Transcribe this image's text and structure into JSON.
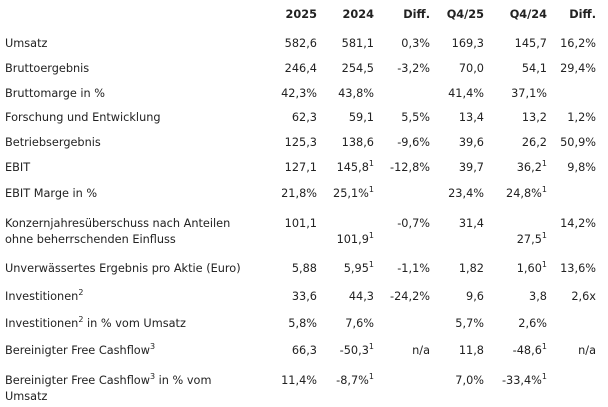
{
  "header": [
    "2025",
    "2024",
    "Diff.",
    "Q4/25",
    "Q4/24",
    "Diff."
  ],
  "rows": [
    {
      "label": [
        "Umsatz"
      ],
      "cells": [
        {
          "v": "582,6"
        },
        {
          "v": "581,1"
        },
        {
          "v": "0,3%"
        },
        {
          "v": "169,3"
        },
        {
          "v": "145,7"
        },
        {
          "v": "16,2%"
        }
      ]
    },
    {
      "label": [
        "Bruttoergebnis"
      ],
      "cells": [
        {
          "v": "246,4"
        },
        {
          "v": "254,5"
        },
        {
          "v": "-3,2%"
        },
        {
          "v": "70,0"
        },
        {
          "v": "54,1"
        },
        {
          "v": "29,4%"
        }
      ]
    },
    {
      "label": [
        "Bruttomarge in %"
      ],
      "cells": [
        {
          "v": "42,3%"
        },
        {
          "v": "43,8%"
        },
        {
          "v": ""
        },
        {
          "v": "41,4%"
        },
        {
          "v": "37,1%"
        },
        {
          "v": ""
        }
      ]
    },
    {
      "label": [
        "Forschung und Entwicklung"
      ],
      "cells": [
        {
          "v": "62,3"
        },
        {
          "v": "59,1"
        },
        {
          "v": "5,5%"
        },
        {
          "v": "13,4"
        },
        {
          "v": "13,2"
        },
        {
          "v": "1,2%"
        }
      ]
    },
    {
      "label": [
        "Betriebsergebnis"
      ],
      "cells": [
        {
          "v": "125,3"
        },
        {
          "v": "138,6"
        },
        {
          "v": "-9,6%"
        },
        {
          "v": "39,6"
        },
        {
          "v": "26,2"
        },
        {
          "v": "50,9%"
        }
      ]
    },
    {
      "label": [
        "EBIT"
      ],
      "cells": [
        {
          "v": "127,1"
        },
        {
          "v": "145,8",
          "sup": "1"
        },
        {
          "v": "-12,8%"
        },
        {
          "v": "39,7"
        },
        {
          "v": "36,2",
          "sup": "1"
        },
        {
          "v": "9,8%"
        }
      ]
    },
    {
      "label": [
        "EBIT Marge in %"
      ],
      "cells": [
        {
          "v": "21,8%"
        },
        {
          "v": "25,1%",
          "sup": "1"
        },
        {
          "v": ""
        },
        {
          "v": "23,4%"
        },
        {
          "v": "24,8%",
          "sup": "1"
        },
        {
          "v": ""
        }
      ]
    },
    {
      "label": [
        "Konzernjahresüberschuss nach Anteilen",
        "ohne beherrschenden Einfluss"
      ],
      "cells": [
        {
          "v": "101,1"
        },
        {
          "v": "101,9",
          "sup": "1"
        },
        {
          "v": "-0,7%"
        },
        {
          "v": "31,4"
        },
        {
          "v": "27,5",
          "sup": "1"
        },
        {
          "v": "14,2%"
        }
      ]
    },
    {
      "label": [
        "Unverwässertes Ergebnis pro Aktie (Euro)"
      ],
      "cells": [
        {
          "v": "5,88"
        },
        {
          "v": "5,95",
          "sup": "1"
        },
        {
          "v": "-1,1%"
        },
        {
          "v": "1,82"
        },
        {
          "v": "1,60",
          "sup": "1"
        },
        {
          "v": "13,6%"
        }
      ]
    },
    {
      "label": [
        "Investitionen"
      ],
      "label_sup": "2",
      "cells": [
        {
          "v": "33,6"
        },
        {
          "v": "44,3"
        },
        {
          "v": "-24,2%"
        },
        {
          "v": "9,6"
        },
        {
          "v": "3,8"
        },
        {
          "v": "2,6x"
        }
      ]
    },
    {
      "label": [
        "Investitionen"
      ],
      "label_sup": "2",
      "label_rest": " in % vom Umsatz",
      "cells": [
        {
          "v": "5,8%"
        },
        {
          "v": "7,6%"
        },
        {
          "v": ""
        },
        {
          "v": "5,7%"
        },
        {
          "v": "2,6%"
        },
        {
          "v": ""
        }
      ]
    },
    {
      "label": [
        "Bereinigter Free Cashflow"
      ],
      "label_sup": "3",
      "cells": [
        {
          "v": "66,3"
        },
        {
          "v": "-50,3",
          "sup": "1"
        },
        {
          "v": "n/a"
        },
        {
          "v": "11,8"
        },
        {
          "v": "-48,6",
          "sup": "1"
        },
        {
          "v": "n/a"
        }
      ]
    },
    {
      "label": [
        "Bereinigter Free Cashflow",
        "Umsatz"
      ],
      "label_sup": "3",
      "label_rest": " in % vom",
      "cells": [
        {
          "v": "11,4%"
        },
        {
          "v": "-8,7%",
          "sup": "1"
        },
        {
          "v": ""
        },
        {
          "v": "7,0%"
        },
        {
          "v": "-33,4%",
          "sup": "1"
        },
        {
          "v": ""
        }
      ]
    }
  ]
}
